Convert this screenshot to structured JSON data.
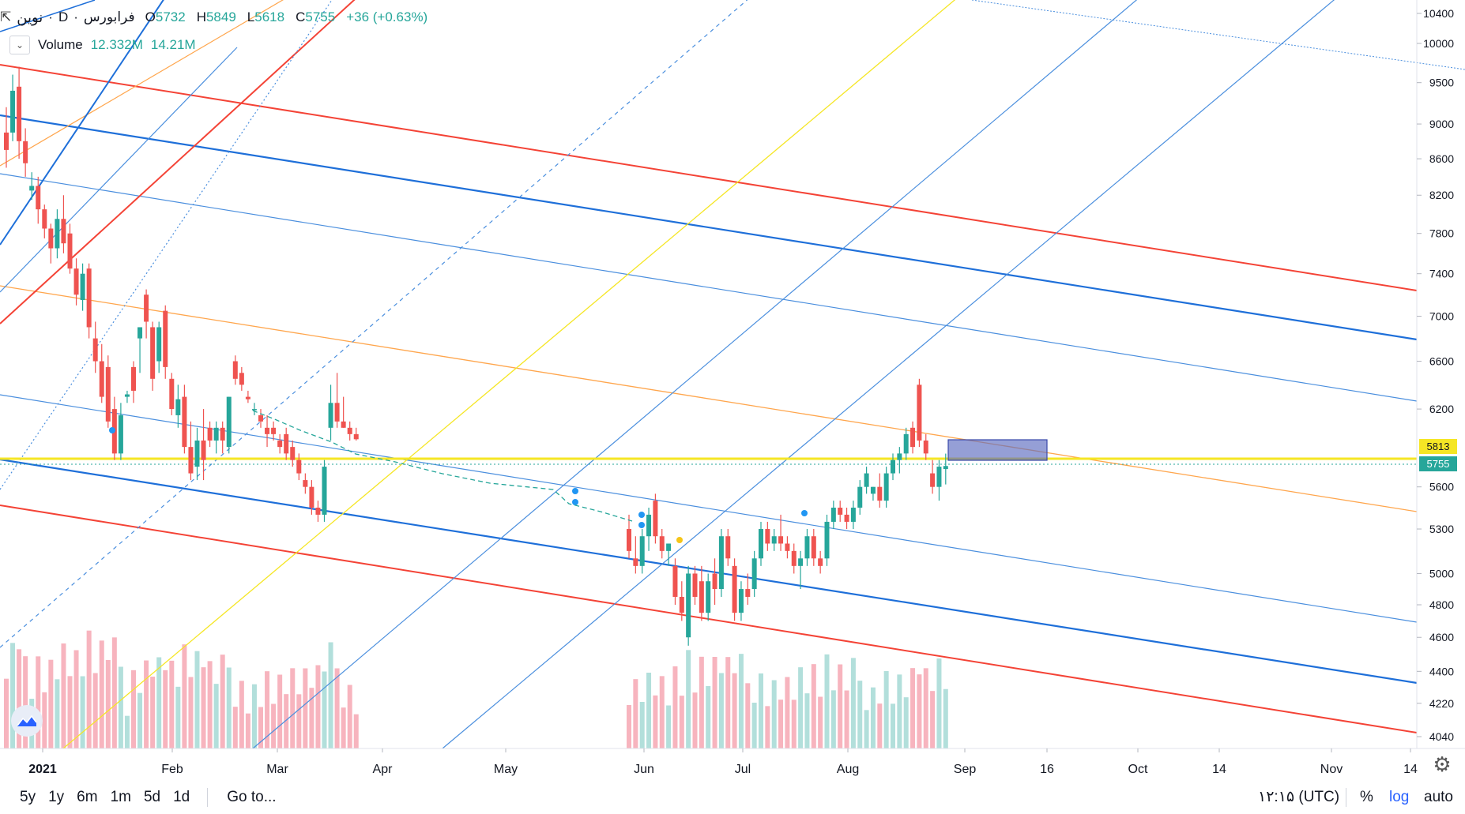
{
  "header": {
    "symbol": "نوین",
    "interval": "D",
    "exchange": "فرابورس",
    "open_label": "O",
    "open": "5732",
    "high_label": "H",
    "high": "5849",
    "low_label": "L",
    "low": "5618",
    "close_label": "C",
    "close": "5755",
    "change": "+36 (+0.63%)"
  },
  "volume": {
    "label": "Volume",
    "v1": "12.332M",
    "v2": "14.21M"
  },
  "price_badges": {
    "level": "5813",
    "last": "5755"
  },
  "bottom": {
    "ranges": [
      "5y",
      "1y",
      "6m",
      "1m",
      "5d",
      "1d"
    ],
    "goto": "Go to...",
    "time": "۱۲:۱۵ (UTC)",
    "percent": "%",
    "log": "log",
    "auto": "auto"
  },
  "colors": {
    "up": "#26a69a",
    "down": "#ef5350",
    "vol_up": "#b2dfdb",
    "vol_down": "#f7b4be",
    "red_line": "#f44336",
    "blue_line": "#1e6fd9",
    "light_blue": "#4b8fde",
    "orange": "#ffa64d",
    "yellow": "#f5e625",
    "h_yellow": "#f5e625"
  },
  "chart_data": {
    "type": "candlestick",
    "scale": "log",
    "y_ticks": [
      10400,
      10000,
      9500,
      9000,
      8600,
      8200,
      7800,
      7400,
      7000,
      6600,
      6200,
      5600,
      5300,
      5000,
      4800,
      4600,
      4400,
      4220,
      4040
    ],
    "x_ticks": [
      "2021",
      "Feb",
      "Mar",
      "Apr",
      "May",
      "Jun",
      "Jul",
      "Aug",
      "Sep",
      "16",
      "Oct",
      "14",
      "Nov",
      "14"
    ],
    "last_price": 5755,
    "horizontal_level": 5813,
    "candles": [
      {
        "o": 8900,
        "h": 9200,
        "l": 8500,
        "c": 8700
      },
      {
        "o": 8900,
        "h": 9600,
        "l": 8800,
        "c": 9400
      },
      {
        "o": 9450,
        "h": 9700,
        "l": 8600,
        "c": 8800
      },
      {
        "o": 8800,
        "h": 8950,
        "l": 8400,
        "c": 8550
      },
      {
        "o": 8250,
        "h": 8450,
        "l": 8150,
        "c": 8300
      },
      {
        "o": 8300,
        "h": 8400,
        "l": 7900,
        "c": 8050
      },
      {
        "o": 8050,
        "h": 8100,
        "l": 7750,
        "c": 7850
      },
      {
        "o": 7850,
        "h": 7900,
        "l": 7500,
        "c": 7650
      },
      {
        "o": 7650,
        "h": 8050,
        "l": 7550,
        "c": 7950
      },
      {
        "o": 7950,
        "h": 8200,
        "l": 7600,
        "c": 7700
      },
      {
        "o": 7800,
        "h": 7900,
        "l": 7400,
        "c": 7450
      },
      {
        "o": 7450,
        "h": 7550,
        "l": 7100,
        "c": 7200
      },
      {
        "o": 7150,
        "h": 7500,
        "l": 7050,
        "c": 7400
      },
      {
        "o": 7450,
        "h": 7500,
        "l": 6800,
        "c": 6900
      },
      {
        "o": 6800,
        "h": 6950,
        "l": 6500,
        "c": 6600
      },
      {
        "o": 6600,
        "h": 6750,
        "l": 6250,
        "c": 6300
      },
      {
        "o": 6550,
        "h": 6650,
        "l": 6050,
        "c": 6100
      },
      {
        "o": 6200,
        "h": 6300,
        "l": 5800,
        "c": 5850
      },
      {
        "o": 5850,
        "h": 6250,
        "l": 5800,
        "c": 6150
      },
      {
        "o": 6300,
        "h": 6350,
        "l": 6250,
        "c": 6320
      },
      {
        "o": 6550,
        "h": 6600,
        "l": 6250,
        "c": 6350
      },
      {
        "o": 6800,
        "h": 6900,
        "l": 6500,
        "c": 6900
      },
      {
        "o": 7200,
        "h": 7250,
        "l": 6800,
        "c": 6950
      },
      {
        "o": 6900,
        "h": 6950,
        "l": 6350,
        "c": 6450
      },
      {
        "o": 6600,
        "h": 6950,
        "l": 6500,
        "c": 6900
      },
      {
        "o": 7050,
        "h": 7100,
        "l": 6450,
        "c": 6550
      },
      {
        "o": 6450,
        "h": 6500,
        "l": 6150,
        "c": 6200
      },
      {
        "o": 6150,
        "h": 6400,
        "l": 6050,
        "c": 6280
      },
      {
        "o": 6300,
        "h": 6400,
        "l": 5850,
        "c": 5900
      },
      {
        "o": 5900,
        "h": 6100,
        "l": 5650,
        "c": 5700
      },
      {
        "o": 5750,
        "h": 6050,
        "l": 5650,
        "c": 5950
      },
      {
        "o": 5950,
        "h": 6200,
        "l": 5650,
        "c": 5800
      },
      {
        "o": 6050,
        "h": 6100,
        "l": 5900,
        "c": 5950
      },
      {
        "o": 5950,
        "h": 6100,
        "l": 5850,
        "c": 6050
      },
      {
        "o": 6050,
        "h": 6100,
        "l": 5850,
        "c": 5950
      },
      {
        "o": 5900,
        "h": 6300,
        "l": 5850,
        "c": 6300
      },
      {
        "o": 6600,
        "h": 6650,
        "l": 6400,
        "c": 6450
      },
      {
        "o": 6500,
        "h": 6550,
        "l": 6350,
        "c": 6400
      },
      {
        "o": 6300,
        "h": 6350,
        "l": 6250,
        "c": 6280
      },
      {
        "o": 6200,
        "h": 6250,
        "l": 6150,
        "c": 6200
      },
      {
        "o": 6150,
        "h": 6200,
        "l": 6050,
        "c": 6100
      },
      {
        "o": 6050,
        "h": 6150,
        "l": 5900,
        "c": 6000
      },
      {
        "o": 6050,
        "h": 6100,
        "l": 5950,
        "c": 6000
      },
      {
        "o": 5950,
        "h": 6000,
        "l": 5850,
        "c": 5900
      },
      {
        "o": 6000,
        "h": 6050,
        "l": 5800,
        "c": 5850
      },
      {
        "o": 5900,
        "h": 5950,
        "l": 5750,
        "c": 5800
      },
      {
        "o": 5800,
        "h": 5850,
        "l": 5650,
        "c": 5700
      },
      {
        "o": 5650,
        "h": 5700,
        "l": 5550,
        "c": 5600
      },
      {
        "o": 5600,
        "h": 5650,
        "l": 5400,
        "c": 5450
      },
      {
        "o": 5450,
        "h": 5500,
        "l": 5350,
        "c": 5400
      },
      {
        "o": 5400,
        "h": 5800,
        "l": 5350,
        "c": 5750
      },
      {
        "o": 6050,
        "h": 6400,
        "l": 5950,
        "c": 6250
      },
      {
        "o": 6250,
        "h": 6500,
        "l": 6050,
        "c": 6100
      },
      {
        "o": 6100,
        "h": 6300,
        "l": 6050,
        "c": 6050
      },
      {
        "o": 6050,
        "h": 6100,
        "l": 5950,
        "c": 6000
      },
      {
        "o": 6000,
        "h": 6050,
        "l": 5950,
        "c": 5960
      }
    ],
    "candles_2": [
      {
        "o": 5300,
        "h": 5400,
        "l": 5100,
        "c": 5150
      },
      {
        "o": 5100,
        "h": 5250,
        "l": 5000,
        "c": 5050
      },
      {
        "o": 5050,
        "h": 5300,
        "l": 5000,
        "c": 5250
      },
      {
        "o": 5250,
        "h": 5450,
        "l": 5150,
        "c": 5400
      },
      {
        "o": 5500,
        "h": 5550,
        "l": 5200,
        "c": 5250
      },
      {
        "o": 5250,
        "h": 5300,
        "l": 5100,
        "c": 5150
      },
      {
        "o": 5150,
        "h": 5200,
        "l": 5050,
        "c": 5200
      },
      {
        "o": 5050,
        "h": 5100,
        "l": 4800,
        "c": 4850
      },
      {
        "o": 4850,
        "h": 4950,
        "l": 4700,
        "c": 4750
      },
      {
        "o": 4600,
        "h": 5050,
        "l": 4550,
        "c": 5000
      },
      {
        "o": 5000,
        "h": 5050,
        "l": 4800,
        "c": 4850
      },
      {
        "o": 4950,
        "h": 5050,
        "l": 4700,
        "c": 4750
      },
      {
        "o": 4750,
        "h": 5000,
        "l": 4700,
        "c": 4950
      },
      {
        "o": 5000,
        "h": 5100,
        "l": 4800,
        "c": 4900
      },
      {
        "o": 4900,
        "h": 5300,
        "l": 4850,
        "c": 5250
      },
      {
        "o": 5250,
        "h": 5300,
        "l": 5050,
        "c": 5100
      },
      {
        "o": 5050,
        "h": 5100,
        "l": 4700,
        "c": 4750
      },
      {
        "o": 4750,
        "h": 4950,
        "l": 4700,
        "c": 4900
      },
      {
        "o": 4900,
        "h": 5000,
        "l": 4800,
        "c": 4850
      },
      {
        "o": 4900,
        "h": 5150,
        "l": 4850,
        "c": 5100
      },
      {
        "o": 5100,
        "h": 5350,
        "l": 5050,
        "c": 5300
      },
      {
        "o": 5300,
        "h": 5350,
        "l": 5150,
        "c": 5200
      },
      {
        "o": 5200,
        "h": 5300,
        "l": 5150,
        "c": 5250
      },
      {
        "o": 5250,
        "h": 5400,
        "l": 5150,
        "c": 5200
      },
      {
        "o": 5200,
        "h": 5250,
        "l": 5100,
        "c": 5150
      },
      {
        "o": 5150,
        "h": 5200,
        "l": 5000,
        "c": 5050
      },
      {
        "o": 5050,
        "h": 5150,
        "l": 4900,
        "c": 5100
      },
      {
        "o": 5100,
        "h": 5300,
        "l": 5050,
        "c": 5250
      },
      {
        "o": 5250,
        "h": 5300,
        "l": 5050,
        "c": 5100
      },
      {
        "o": 5100,
        "h": 5150,
        "l": 5000,
        "c": 5050
      },
      {
        "o": 5100,
        "h": 5400,
        "l": 5050,
        "c": 5350
      },
      {
        "o": 5350,
        "h": 5500,
        "l": 5300,
        "c": 5450
      },
      {
        "o": 5450,
        "h": 5500,
        "l": 5350,
        "c": 5400
      },
      {
        "o": 5400,
        "h": 5450,
        "l": 5300,
        "c": 5350
      },
      {
        "o": 5350,
        "h": 5500,
        "l": 5300,
        "c": 5450
      },
      {
        "o": 5450,
        "h": 5650,
        "l": 5400,
        "c": 5600
      },
      {
        "o": 5600,
        "h": 5750,
        "l": 5550,
        "c": 5700
      },
      {
        "o": 5550,
        "h": 5600,
        "l": 5500,
        "c": 5600
      },
      {
        "o": 5600,
        "h": 5700,
        "l": 5450,
        "c": 5500
      },
      {
        "o": 5500,
        "h": 5750,
        "l": 5450,
        "c": 5700
      },
      {
        "o": 5700,
        "h": 5850,
        "l": 5650,
        "c": 5800
      },
      {
        "o": 5800,
        "h": 5900,
        "l": 5700,
        "c": 5850
      },
      {
        "o": 5850,
        "h": 6050,
        "l": 5800,
        "c": 6000
      },
      {
        "o": 6050,
        "h": 6100,
        "l": 5850,
        "c": 5900
      },
      {
        "o": 6400,
        "h": 6450,
        "l": 5900,
        "c": 5950
      },
      {
        "o": 5950,
        "h": 6000,
        "l": 5800,
        "c": 5850
      },
      {
        "o": 5700,
        "h": 5800,
        "l": 5550,
        "c": 5600
      },
      {
        "o": 5600,
        "h": 5800,
        "l": 5500,
        "c": 5750
      },
      {
        "o": 5732,
        "h": 5849,
        "l": 5618,
        "c": 5755
      }
    ]
  }
}
